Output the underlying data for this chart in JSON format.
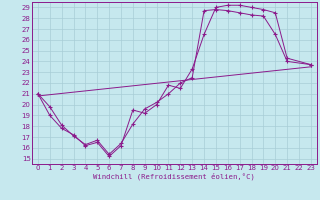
{
  "xlabel": "Windchill (Refroidissement éolien,°C)",
  "bg_color": "#c6e8ee",
  "line_color": "#8b1a8b",
  "grid_color": "#a8cdd6",
  "xlim": [
    -0.5,
    23.5
  ],
  "ylim": [
    14.5,
    29.5
  ],
  "xticks": [
    0,
    1,
    2,
    3,
    4,
    5,
    6,
    7,
    8,
    9,
    10,
    11,
    12,
    13,
    14,
    15,
    16,
    17,
    18,
    19,
    20,
    21,
    22,
    23
  ],
  "yticks": [
    15,
    16,
    17,
    18,
    19,
    20,
    21,
    22,
    23,
    24,
    25,
    26,
    27,
    28,
    29
  ],
  "line1_x": [
    0,
    1,
    2,
    3,
    4,
    5,
    6,
    7,
    8,
    9,
    10,
    11,
    12,
    13,
    14,
    15,
    16,
    17,
    18,
    19,
    20,
    21,
    23
  ],
  "line1_y": [
    21,
    19,
    17.8,
    17.2,
    16.2,
    16.5,
    15.2,
    16.2,
    19.5,
    19.2,
    20.0,
    21.8,
    21.5,
    23.3,
    26.5,
    29.0,
    29.2,
    29.2,
    29.0,
    28.8,
    28.5,
    24.3,
    23.7
  ],
  "line2_x": [
    0,
    1,
    2,
    3,
    4,
    5,
    6,
    7,
    8,
    9,
    10,
    11,
    12,
    13,
    14,
    15,
    16,
    17,
    18,
    19,
    20,
    21,
    23
  ],
  "line2_y": [
    21,
    19.8,
    18.1,
    17.1,
    16.3,
    16.7,
    15.4,
    16.4,
    18.2,
    19.6,
    20.2,
    21.0,
    22.0,
    22.5,
    28.7,
    28.8,
    28.7,
    28.5,
    28.3,
    28.2,
    26.5,
    24.0,
    23.7
  ],
  "line3_x": [
    0,
    23
  ],
  "line3_y": [
    20.8,
    23.5
  ],
  "marker": "+"
}
